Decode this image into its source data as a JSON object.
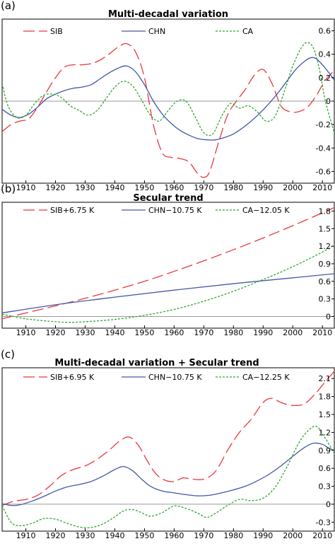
{
  "chart_data": [
    {
      "panel_label": "(a)",
      "type": "line",
      "title": "Multi-decadal variation",
      "xlim": [
        1902,
        2014
      ],
      "ylim": [
        -0.7,
        0.7
      ],
      "xticks": [
        1910,
        1920,
        1930,
        1940,
        1950,
        1960,
        1970,
        1980,
        1990,
        2000,
        2010
      ],
      "yticks": [
        -0.6,
        -0.4,
        -0.2,
        0,
        0.2,
        0.4,
        0.6
      ],
      "ytick_labels": [
        "-0.6",
        "-0.4",
        "-0.2",
        "0",
        "0.2",
        "0.4",
        "0.6"
      ],
      "zero_line": 0,
      "legend_position": "top",
      "series": [
        {
          "name": "SIB",
          "color": "#e8383d",
          "dash": "long-dash",
          "x": [
            1902,
            1905,
            1908,
            1911,
            1914,
            1917,
            1920,
            1923,
            1926,
            1929,
            1932,
            1935,
            1938,
            1941,
            1944,
            1947,
            1950,
            1953,
            1956,
            1959,
            1962,
            1965,
            1968,
            1970,
            1972,
            1975,
            1978,
            1981,
            1984,
            1987,
            1990,
            1993,
            1996,
            1999,
            2002,
            2005,
            2008,
            2011,
            2014
          ],
          "y": [
            -0.26,
            -0.2,
            -0.17,
            -0.15,
            -0.05,
            0.08,
            0.2,
            0.29,
            0.31,
            0.31,
            0.32,
            0.35,
            0.4,
            0.46,
            0.49,
            0.42,
            0.2,
            -0.2,
            -0.44,
            -0.48,
            -0.49,
            -0.52,
            -0.62,
            -0.65,
            -0.6,
            -0.35,
            -0.12,
            0.0,
            0.1,
            0.22,
            0.27,
            0.15,
            -0.04,
            -0.09,
            -0.09,
            -0.05,
            0.05,
            0.18,
            0.26
          ]
        },
        {
          "name": "CHN",
          "color": "#4358a8",
          "dash": "solid",
          "x": [
            1902,
            1905,
            1908,
            1911,
            1914,
            1917,
            1920,
            1923,
            1926,
            1929,
            1932,
            1935,
            1938,
            1941,
            1944,
            1947,
            1950,
            1953,
            1956,
            1959,
            1962,
            1965,
            1968,
            1971,
            1974,
            1977,
            1980,
            1983,
            1986,
            1989,
            1992,
            1995,
            1998,
            2001,
            2004,
            2006,
            2008,
            2011,
            2014
          ],
          "y": [
            -0.07,
            -0.12,
            -0.14,
            -0.11,
            -0.05,
            0.02,
            0.06,
            0.09,
            0.11,
            0.12,
            0.14,
            0.19,
            0.24,
            0.28,
            0.3,
            0.25,
            0.14,
            0.0,
            -0.11,
            -0.19,
            -0.25,
            -0.29,
            -0.32,
            -0.33,
            -0.33,
            -0.31,
            -0.28,
            -0.23,
            -0.17,
            -0.1,
            -0.02,
            0.07,
            0.17,
            0.27,
            0.34,
            0.37,
            0.36,
            0.28,
            0.18
          ]
        },
        {
          "name": "CA",
          "color": "#2fa82f",
          "dash": "dotted",
          "x": [
            1902,
            1904,
            1907,
            1910,
            1913,
            1916,
            1919,
            1922,
            1925,
            1928,
            1931,
            1934,
            1937,
            1940,
            1943,
            1946,
            1949,
            1952,
            1955,
            1958,
            1961,
            1964,
            1967,
            1970,
            1973,
            1976,
            1979,
            1982,
            1985,
            1988,
            1991,
            1994,
            1997,
            2000,
            2003,
            2005,
            2007,
            2009,
            2011,
            2014
          ],
          "y": [
            0.15,
            -0.04,
            -0.14,
            -0.12,
            -0.02,
            0.05,
            0.06,
            0.03,
            -0.04,
            -0.08,
            -0.12,
            -0.08,
            0.02,
            0.12,
            0.17,
            0.13,
            0.01,
            -0.12,
            -0.17,
            -0.08,
            0.0,
            0.0,
            -0.13,
            -0.27,
            -0.28,
            -0.13,
            -0.02,
            -0.06,
            -0.04,
            -0.09,
            -0.17,
            -0.13,
            0.07,
            0.3,
            0.46,
            0.5,
            0.45,
            0.27,
            0.0,
            -0.27
          ]
        }
      ]
    },
    {
      "panel_label": "(b)",
      "type": "line",
      "title": "Secular trend",
      "xlim": [
        1902,
        2014
      ],
      "ylim": [
        -0.2,
        1.95
      ],
      "xticks": [
        1910,
        1920,
        1930,
        1940,
        1950,
        1960,
        1970,
        1980,
        1990,
        2000,
        2010
      ],
      "yticks": [
        0,
        0.3,
        0.6,
        0.9,
        1.2,
        1.5,
        1.8
      ],
      "ytick_labels": [
        "0",
        "0.3",
        "0.6",
        "0.9",
        "1.2",
        "1.5",
        "1.8"
      ],
      "zero_line": 0,
      "legend_position": "top",
      "series": [
        {
          "name": "SIB+6.75 K",
          "color": "#e8383d",
          "dash": "long-dash",
          "x": [
            1902,
            1910,
            1920,
            1930,
            1940,
            1950,
            1960,
            1970,
            1980,
            1990,
            2000,
            2010,
            2014
          ],
          "y": [
            -0.04,
            0.06,
            0.18,
            0.31,
            0.45,
            0.6,
            0.77,
            0.95,
            1.14,
            1.34,
            1.55,
            1.77,
            1.86
          ]
        },
        {
          "name": "CHN−10.75 K",
          "color": "#4358a8",
          "dash": "solid",
          "x": [
            1902,
            1920,
            1940,
            1960,
            1980,
            2000,
            2014
          ],
          "y": [
            0.06,
            0.2,
            0.33,
            0.45,
            0.56,
            0.66,
            0.73
          ]
        },
        {
          "name": "CA−12.05 K",
          "color": "#2fa82f",
          "dash": "dotted",
          "x": [
            1902,
            1910,
            1920,
            1925,
            1930,
            1940,
            1950,
            1960,
            1970,
            1980,
            1990,
            2000,
            2010,
            2014
          ],
          "y": [
            0.04,
            -0.04,
            -0.09,
            -0.1,
            -0.09,
            -0.05,
            0.02,
            0.12,
            0.26,
            0.43,
            0.63,
            0.85,
            1.1,
            1.22
          ]
        }
      ]
    },
    {
      "panel_label": "(c)",
      "type": "line",
      "title": "Multi-decadal variation + Secular trend",
      "xlim": [
        1902,
        2014
      ],
      "ylim": [
        -0.45,
        2.28
      ],
      "xticks": [
        1910,
        1920,
        1930,
        1940,
        1950,
        1960,
        1970,
        1980,
        1990,
        2000,
        2010
      ],
      "yticks": [
        -0.3,
        0,
        0.3,
        0.6,
        0.9,
        1.2,
        1.5,
        1.8,
        2.1
      ],
      "ytick_labels": [
        "-0.3",
        "0",
        "0.3",
        "0.6",
        "0.9",
        "1.2",
        "1.5",
        "1.8",
        "2.1"
      ],
      "zero_line": 0,
      "legend_position": "top",
      "series": [
        {
          "name": "SIB+6.95 K",
          "color": "#e8383d",
          "dash": "long-dash",
          "x": [
            1902,
            1906,
            1910,
            1914,
            1918,
            1922,
            1926,
            1930,
            1934,
            1938,
            1942,
            1945,
            1948,
            1951,
            1954,
            1957,
            1960,
            1963,
            1966,
            1970,
            1974,
            1978,
            1982,
            1986,
            1990,
            1993,
            1996,
            2000,
            2004,
            2008,
            2011,
            2014
          ],
          "y": [
            -0.02,
            0.05,
            0.08,
            0.15,
            0.3,
            0.48,
            0.58,
            0.64,
            0.75,
            0.9,
            1.07,
            1.12,
            0.98,
            0.72,
            0.5,
            0.4,
            0.38,
            0.44,
            0.42,
            0.42,
            0.55,
            0.9,
            1.2,
            1.42,
            1.7,
            1.77,
            1.7,
            1.65,
            1.68,
            1.87,
            2.05,
            2.22
          ]
        },
        {
          "name": "CHN−10.75 K",
          "color": "#4358a8",
          "dash": "solid",
          "x": [
            1902,
            1905,
            1908,
            1912,
            1916,
            1920,
            1924,
            1928,
            1932,
            1936,
            1940,
            1943,
            1946,
            1949,
            1952,
            1956,
            1960,
            1964,
            1968,
            1972,
            1976,
            1980,
            1984,
            1988,
            1992,
            1996,
            2000,
            2004,
            2007,
            2010,
            2012,
            2014
          ],
          "y": [
            0.01,
            -0.02,
            -0.01,
            0.05,
            0.13,
            0.22,
            0.29,
            0.33,
            0.38,
            0.47,
            0.58,
            0.63,
            0.56,
            0.42,
            0.3,
            0.22,
            0.19,
            0.16,
            0.14,
            0.15,
            0.19,
            0.24,
            0.3,
            0.39,
            0.5,
            0.64,
            0.8,
            0.95,
            1.02,
            1.0,
            0.94,
            0.9
          ]
        },
        {
          "name": "CA−12.25 K",
          "color": "#2fa82f",
          "dash": "dotted",
          "x": [
            1902,
            1905,
            1908,
            1912,
            1916,
            1920,
            1924,
            1928,
            1932,
            1936,
            1940,
            1943,
            1946,
            1949,
            1952,
            1956,
            1960,
            1964,
            1968,
            1971,
            1974,
            1978,
            1982,
            1986,
            1990,
            1994,
            1998,
            2002,
            2005,
            2008,
            2011,
            2014
          ],
          "y": [
            -0.02,
            -0.3,
            -0.36,
            -0.32,
            -0.24,
            -0.25,
            -0.32,
            -0.38,
            -0.39,
            -0.33,
            -0.21,
            -0.11,
            -0.09,
            -0.14,
            -0.2,
            -0.14,
            -0.03,
            -0.07,
            -0.15,
            -0.22,
            -0.15,
            -0.02,
            0.08,
            0.06,
            0.1,
            0.28,
            0.62,
            1.02,
            1.22,
            1.3,
            1.1,
            0.85
          ]
        }
      ]
    }
  ]
}
